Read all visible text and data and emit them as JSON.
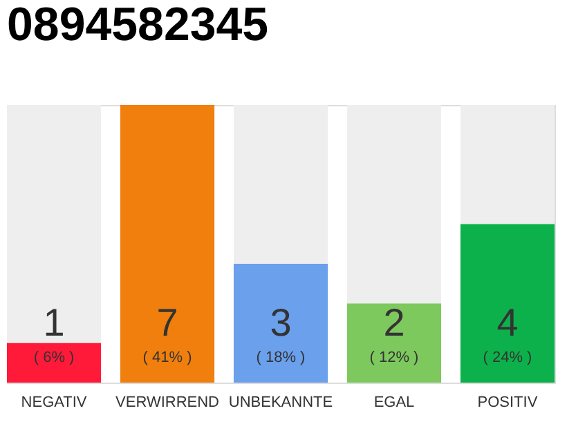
{
  "chart_data": {
    "type": "bar",
    "title": "0894582345",
    "stacked": true,
    "categories": [
      "NEGATIV",
      "VERWIRREND",
      "UNBEKANNTE",
      "EGAL",
      "POSITIV"
    ],
    "series": [
      {
        "colors": [
          "#ff1a3a",
          "#f07f0e",
          "#6aa0ec",
          "#7dc95e",
          "#0db14b"
        ],
        "values": [
          1,
          7,
          3,
          2,
          4
        ],
        "value_labels": [
          "1",
          "7",
          "3",
          "2",
          "4"
        ]
      },
      {
        "color": "#eeeeee",
        "values": [
          6,
          0,
          4,
          5,
          3
        ]
      }
    ],
    "annotations": [
      "( 6% )",
      "( 41% )",
      "( 18% )",
      "( 12% )",
      "( 24% )"
    ],
    "tick_labels": "x"
  }
}
